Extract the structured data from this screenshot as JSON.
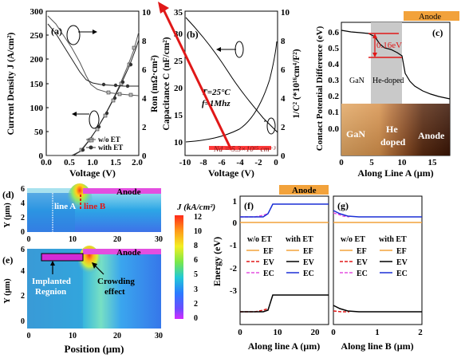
{
  "panel_a": {
    "label": "(a)",
    "ylabel_left": "Current Density J (A/cm²)",
    "ylabel_right": "Ron (mΩ·cm²)",
    "xlabel": "Voltage (V)",
    "x_ticks": [
      "0.0",
      "0.5",
      "1.0",
      "1.5",
      "2.0"
    ],
    "y_left_ticks": [
      "0",
      "50",
      "100",
      "150",
      "200",
      "250",
      "300"
    ],
    "y_right_ticks": [
      "0",
      "2",
      "4",
      "6",
      "8",
      "10"
    ],
    "legend": [
      "w/o ET",
      "with ET"
    ]
  },
  "panel_b": {
    "label": "(b)",
    "ylabel_left": "Capacitance C (nF/cm²)",
    "ylabel_right": "1/C² (*10¹⁶cm⁴/F²)",
    "xlabel": "Voltage (V)",
    "x_ticks": [
      "-10",
      "-8",
      "-6",
      "-4",
      "-2",
      "0"
    ],
    "y_left_ticks": [
      "10",
      "15",
      "20",
      "25",
      "30",
      "35"
    ],
    "y_right_ticks": [
      "0",
      "2",
      "4",
      "6",
      "8",
      "10"
    ],
    "ann_T": "T=25°C",
    "ann_f": "f=1Mhz",
    "ann_Nd": "Nd = 5.3×10¹⁵ cm⁻³"
  },
  "panel_c": {
    "label": "(c)",
    "ylabel": "Contact Potential Difference (eV)",
    "xlabel": "Along Line A (μm)",
    "x_ticks": [
      "0",
      "5",
      "10",
      "15"
    ],
    "y_ticks": [
      "0.0",
      "0.1",
      "0.2",
      "0.3",
      "0.4",
      "0.5",
      "0.6"
    ],
    "anode_label": "Anode",
    "gan_label": "GaN",
    "hedoped_label": "He-doped",
    "delta_label": "0.16eV",
    "img_gan": "GaN",
    "img_he": "He",
    "img_doped": "doped",
    "img_anode": "Anode"
  },
  "panel_d": {
    "label": "(d)",
    "anode": "Anode",
    "lineA": "line A",
    "lineB": "line B",
    "ylabel": "Y (μm)",
    "x_ticks": [
      "0",
      "10",
      "20",
      "30"
    ],
    "y_ticks": [
      "0",
      "2",
      "4",
      "6"
    ]
  },
  "panel_e": {
    "label": "(e)",
    "anode": "Anode",
    "ylabel": "Y (μm)",
    "x_ticks": [
      "0",
      "10",
      "20",
      "30"
    ],
    "y_ticks": [
      "0",
      "2",
      "4",
      "6"
    ],
    "xlabel": "Position (μm)",
    "implanted_1": "Implanted",
    "implanted_2": "Regnion",
    "crowd_1": "Crowding",
    "crowd_2": "effect"
  },
  "colorbar": {
    "title": "J (kA/cm²)",
    "ticks": [
      "12",
      "10",
      "8",
      "6",
      "5",
      "3",
      "2",
      "0"
    ]
  },
  "panel_f": {
    "label": "(f)",
    "anode": "Anode",
    "ylabel": "Energy (eV)",
    "xlabel": "Along line A (μm)",
    "x_ticks": [
      "0",
      "10",
      "20"
    ],
    "y_ticks": [
      "1",
      "0",
      "-1",
      "-2",
      "-3"
    ],
    "leg_wo": "w/o ET",
    "leg_with": "with ET",
    "ef": "EF",
    "ev": "EV",
    "ec": "EC"
  },
  "panel_g": {
    "label": "(g)",
    "xlabel": "Along line B (μm)",
    "x_ticks": [
      "0",
      "1",
      "2"
    ],
    "leg_wo": "w/o ET",
    "leg_with": "with ET",
    "ef": "EF",
    "ev": "EV",
    "ec": "EC"
  }
}
